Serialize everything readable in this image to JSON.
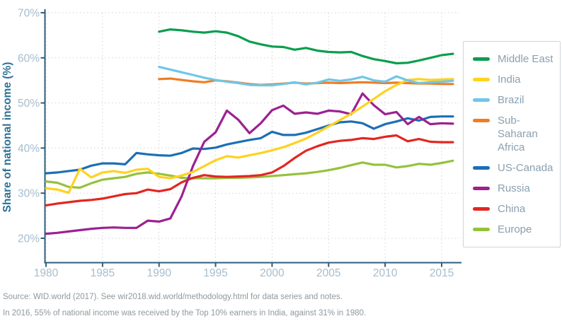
{
  "source": {
    "line1": "Source: WID.world (2017). See wir2018.wid.world/methodology.html for data series and notes.",
    "line2": "In 2016, 55% of national income was received by the Top 10% earners in India, against 31% in 1980."
  },
  "colors": {
    "axis_spine": "#2e5e7c",
    "axis_title": "#2c7095",
    "tick_label": "#a6bdcc",
    "gridline": "#d4d4d4",
    "legend_text": "#8aa0b0",
    "legend_border": "#cbd5da",
    "source_text": "#8f989e"
  },
  "chart_data": {
    "type": "line",
    "title": "",
    "ylabel": "Share of national income (%)",
    "xlabel": "",
    "ylim": [
      14.7,
      70
    ],
    "xlim": [
      1979.8,
      2016.6
    ],
    "grid": "dotted",
    "legend_position": "right",
    "y_ticks": [
      {
        "value": 70,
        "label": "70%"
      },
      {
        "value": 60,
        "label": "60%"
      },
      {
        "value": 50,
        "label": "50%"
      },
      {
        "value": 40,
        "label": "40%"
      },
      {
        "value": 30,
        "label": "30%"
      },
      {
        "value": 20,
        "label": "20%"
      }
    ],
    "x_ticks": [
      {
        "value": 1980,
        "label": "1980"
      },
      {
        "value": 1985,
        "label": "1985"
      },
      {
        "value": 1990,
        "label": "1990"
      },
      {
        "value": 1995,
        "label": "1995"
      },
      {
        "value": 2000,
        "label": "2000"
      },
      {
        "value": 2005,
        "label": "2005"
      },
      {
        "value": 2010,
        "label": "2010"
      },
      {
        "value": 2015,
        "label": "2015"
      }
    ],
    "series": [
      {
        "name": "Middle East",
        "slug": "middle-east",
        "color": "#0b9e4d",
        "start_year": 1990,
        "values": [
          65.8,
          66.3,
          66.1,
          65.8,
          65.6,
          65.9,
          65.6,
          64.8,
          63.6,
          63.0,
          62.5,
          62.4,
          61.8,
          62.2,
          61.6,
          61.3,
          61.2,
          61.3,
          60.4,
          59.7,
          59.3,
          58.8,
          58.9,
          59.4,
          60.0,
          60.6,
          60.9
        ]
      },
      {
        "name": "India",
        "slug": "india",
        "color": "#ffd21e",
        "start_year": 1980,
        "values": [
          31.1,
          30.8,
          30.1,
          35.4,
          33.5,
          34.6,
          34.9,
          34.5,
          35.2,
          35.4,
          33.6,
          33.3,
          33.9,
          34.7,
          36.0,
          37.3,
          38.2,
          37.9,
          38.4,
          38.9,
          39.5,
          40.2,
          41.1,
          42.1,
          43.4,
          44.8,
          46.2,
          47.6,
          49.2,
          50.9,
          52.6,
          54.0,
          55.1,
          55.3,
          55.1,
          55.2,
          55.3
        ]
      },
      {
        "name": "Brazil",
        "slug": "brazil",
        "color": "#70c6e8",
        "start_year": 1990,
        "values": [
          58.0,
          57.4,
          56.8,
          56.2,
          55.6,
          55.1,
          54.7,
          54.4,
          54.0,
          53.9,
          53.9,
          54.2,
          54.6,
          54.1,
          54.5,
          55.2,
          54.9,
          55.2,
          55.8,
          55.0,
          54.7,
          55.9,
          55.0,
          54.4,
          54.6,
          54.7,
          54.9
        ]
      },
      {
        "name": "Sub-Saharan Africa",
        "slug": "sub-saharan-africa",
        "color": "#ef7d24",
        "start_year": 1990,
        "values": [
          55.3,
          55.4,
          55.1,
          54.8,
          54.6,
          55.0,
          54.8,
          54.5,
          54.2,
          54.0,
          54.1,
          54.3,
          54.5,
          54.3,
          54.4,
          54.5,
          54.4,
          54.5,
          54.6,
          54.5,
          54.4,
          54.5,
          54.4,
          54.3,
          54.3,
          54.2,
          54.2
        ]
      },
      {
        "name": "US-Canada",
        "slug": "us-canada",
        "color": "#1d6fb5",
        "start_year": 1980,
        "values": [
          34.4,
          34.6,
          34.9,
          35.2,
          36.1,
          36.6,
          36.6,
          36.4,
          38.9,
          38.6,
          38.4,
          38.3,
          38.9,
          39.9,
          39.8,
          40.1,
          40.8,
          41.3,
          41.8,
          42.2,
          43.6,
          42.9,
          42.9,
          43.4,
          44.2,
          45.0,
          45.7,
          45.9,
          45.5,
          44.3,
          45.3,
          45.9,
          46.6,
          46.1,
          46.9,
          47.0,
          47.0
        ]
      },
      {
        "name": "Russia",
        "slug": "russia",
        "color": "#9c2191",
        "start_year": 1980,
        "values": [
          21.0,
          21.2,
          21.5,
          21.8,
          22.1,
          22.3,
          22.4,
          22.3,
          22.3,
          23.9,
          23.7,
          24.4,
          29.3,
          36.0,
          41.4,
          43.5,
          48.3,
          46.3,
          43.3,
          45.5,
          48.4,
          49.4,
          47.6,
          47.9,
          47.6,
          48.3,
          48.1,
          47.5,
          52.1,
          49.5,
          47.5,
          48.0,
          45.3,
          46.9,
          45.3,
          45.5,
          45.4
        ]
      },
      {
        "name": "China",
        "slug": "china",
        "color": "#e42521",
        "start_year": 1980,
        "values": [
          27.3,
          27.7,
          28.0,
          28.3,
          28.5,
          28.8,
          29.3,
          29.8,
          30.0,
          30.8,
          30.4,
          30.9,
          32.4,
          33.4,
          34.0,
          33.7,
          33.6,
          33.7,
          33.8,
          34.0,
          34.6,
          36.0,
          37.8,
          39.4,
          40.4,
          41.2,
          41.6,
          41.8,
          42.2,
          42.0,
          42.5,
          42.8,
          41.5,
          42.0,
          41.4,
          41.3,
          41.3
        ]
      },
      {
        "name": "Europe",
        "slug": "europe",
        "color": "#95c23d",
        "start_year": 1980,
        "values": [
          32.6,
          32.3,
          31.4,
          31.2,
          32.2,
          33.0,
          33.3,
          33.6,
          34.3,
          34.6,
          34.3,
          33.9,
          33.4,
          33.3,
          33.3,
          33.3,
          33.4,
          33.4,
          33.5,
          33.6,
          33.8,
          34.0,
          34.2,
          34.4,
          34.7,
          35.1,
          35.6,
          36.2,
          36.8,
          36.3,
          36.3,
          35.7,
          36.0,
          36.5,
          36.3,
          36.7,
          37.2
        ]
      }
    ]
  }
}
